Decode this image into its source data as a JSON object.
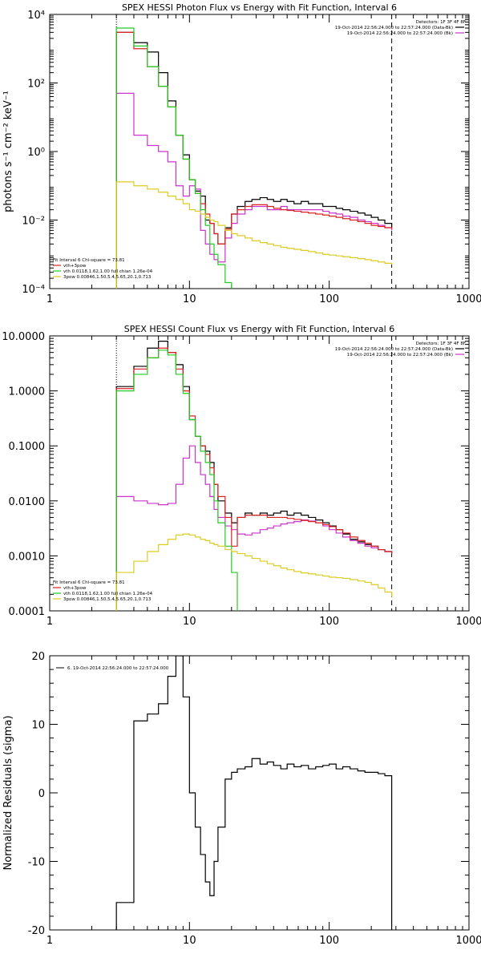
{
  "chart_data": [
    {
      "type": "line",
      "title": "SPEX HESSI Photon Flux vs Energy with Fit Function, Interval 6",
      "ylabel": "photons s⁻¹ cm⁻² keV⁻¹",
      "xlabel": "",
      "xscale": "log",
      "yscale": "log",
      "xlim": [
        1,
        1000
      ],
      "ylim": [
        0.0001,
        10000
      ],
      "x_ticks": [
        1,
        10,
        100,
        1000
      ],
      "x_ticklabels": [
        "1",
        "10",
        "100",
        "1000"
      ],
      "y_ticks": [
        0.0001,
        0.01,
        1,
        100,
        10000
      ],
      "y_ticklabels": [
        "10⁻⁴",
        "10⁻²",
        "10⁰",
        "10²",
        "10⁴"
      ],
      "legend_top": {
        "header": "Detectors: 1F 3F 4F 8F",
        "entries": [
          {
            "label": "19-Oct-2014 22:56:24.000 to 22:57:24.000 (Data-Bk)",
            "color": "#000000"
          },
          {
            "label": "19-Oct-2014 22:56:24.000 to 22:57:24.000 (Bk)",
            "color": "#cc33cc"
          }
        ]
      },
      "legend_bottom": {
        "header": "Fit Interval  6    Chi-square = 73.81",
        "entries": [
          {
            "label": "vth+3pow",
            "color": "#dd2222"
          },
          {
            "label": "vth 0.0118,1.62,1.00  full chian 1.26e-04",
            "color": "#22cc22"
          },
          {
            "label": "3pow 0.00846,1.50,5.4,5.65,20.1,0.713",
            "color": "#ddcc22"
          }
        ]
      },
      "vlines": [
        {
          "x": 3,
          "color": "#000000",
          "style": "dotted"
        },
        {
          "x": 280,
          "color": "#000000",
          "style": "dashed"
        }
      ],
      "series": [
        {
          "name": "Data-Bk",
          "color": "#000000",
          "step": true,
          "x": [
            3,
            4,
            5,
            6,
            7,
            8,
            9,
            10,
            11,
            12,
            13,
            14,
            15,
            16,
            18,
            20,
            22,
            25,
            28,
            32,
            36,
            40,
            45,
            50,
            56,
            63,
            71,
            80,
            90,
            100,
            112,
            125,
            141,
            160,
            180,
            200,
            224,
            250,
            280
          ],
          "y": [
            3000,
            1500,
            800,
            200,
            30,
            3,
            0.8,
            0.15,
            0.07,
            0.05,
            0.01,
            0.008,
            0.004,
            0.002,
            0.006,
            0.015,
            0.025,
            0.035,
            0.04,
            0.045,
            0.04,
            0.035,
            0.04,
            0.035,
            0.03,
            0.035,
            0.03,
            0.03,
            0.025,
            0.025,
            0.022,
            0.02,
            0.018,
            0.016,
            0.014,
            0.012,
            0.01,
            0.008,
            0.006
          ]
        },
        {
          "name": "Bk",
          "color": "#cc33cc",
          "step": true,
          "x": [
            3,
            4,
            5,
            6,
            7,
            8,
            9,
            10,
            11,
            12,
            13,
            14,
            15,
            16,
            18,
            20,
            22,
            25,
            28,
            32,
            36,
            40,
            45,
            50,
            56,
            63,
            71,
            80,
            90,
            100,
            112,
            125,
            141,
            160,
            180,
            200,
            224,
            250,
            280
          ],
          "y": [
            50,
            3,
            1.5,
            1,
            0.5,
            0.1,
            0.05,
            0.1,
            0.08,
            0.005,
            0.002,
            0.001,
            0.0007,
            0.0006,
            0.003,
            0.008,
            0.015,
            0.02,
            0.025,
            0.025,
            0.02,
            0.02,
            0.025,
            0.02,
            0.02,
            0.02,
            0.02,
            0.02,
            0.018,
            0.016,
            0.015,
            0.013,
            0.012,
            0.01,
            0.009,
            0.008,
            0.007,
            0.006,
            0.005
          ]
        },
        {
          "name": "vth+3pow",
          "color": "#dd2222",
          "step": true,
          "x": [
            3,
            4,
            5,
            6,
            7,
            8,
            9,
            10,
            11,
            12,
            13,
            14,
            15,
            16,
            18,
            20,
            22,
            25,
            28,
            32,
            36,
            40,
            45,
            50,
            56,
            63,
            71,
            80,
            90,
            100,
            112,
            125,
            141,
            160,
            180,
            200,
            224,
            250,
            280
          ],
          "y": [
            3000,
            1000,
            300,
            80,
            20,
            3,
            0.6,
            0.15,
            0.06,
            0.03,
            0.015,
            0.008,
            0.004,
            0.002,
            0.0055,
            0.015,
            0.02,
            0.025,
            0.028,
            0.028,
            0.025,
            0.022,
            0.02,
            0.019,
            0.018,
            0.017,
            0.016,
            0.015,
            0.014,
            0.013,
            0.012,
            0.011,
            0.01,
            0.009,
            0.008,
            0.007,
            0.0065,
            0.006,
            0.0055
          ]
        },
        {
          "name": "vth",
          "color": "#22cc22",
          "step": true,
          "x": [
            3,
            4,
            5,
            6,
            7,
            8,
            9,
            10,
            11,
            12,
            13,
            14,
            15,
            16,
            18,
            20
          ],
          "y": [
            4000,
            1200,
            300,
            80,
            20,
            3,
            0.6,
            0.15,
            0.06,
            0.02,
            0.007,
            0.002,
            0.001,
            0.0005,
            0.00015,
            5e-05
          ]
        },
        {
          "name": "3pow",
          "color": "#ddcc22",
          "step": true,
          "x": [
            3,
            4,
            5,
            6,
            7,
            8,
            9,
            10,
            11,
            12,
            13,
            14,
            15,
            16,
            18,
            20,
            22,
            25,
            28,
            32,
            36,
            40,
            45,
            50,
            56,
            63,
            71,
            80,
            90,
            100,
            112,
            125,
            141,
            160,
            180,
            200,
            224,
            250,
            280
          ],
          "y": [
            0.13,
            0.1,
            0.08,
            0.065,
            0.05,
            0.04,
            0.03,
            0.02,
            0.018,
            0.015,
            0.012,
            0.01,
            0.009,
            0.007,
            0.005,
            0.004,
            0.0035,
            0.003,
            0.0025,
            0.0022,
            0.002,
            0.0018,
            0.0016,
            0.0015,
            0.0014,
            0.0013,
            0.0012,
            0.0011,
            0.001,
            0.00095,
            0.0009,
            0.00085,
            0.0008,
            0.00075,
            0.0007,
            0.00065,
            0.0006,
            0.00055,
            0.0005
          ]
        }
      ]
    },
    {
      "type": "line",
      "title": "SPEX HESSI Count Flux vs Energy with Fit Function, Interval 6",
      "ylabel": "",
      "xlabel": "",
      "xscale": "log",
      "yscale": "log",
      "xlim": [
        1,
        1000
      ],
      "ylim": [
        0.0001,
        10
      ],
      "x_ticks": [
        1,
        10,
        100,
        1000
      ],
      "x_ticklabels": [
        "1",
        "10",
        "100",
        "1000"
      ],
      "y_ticks": [
        0.0001,
        0.001,
        0.01,
        0.1,
        1,
        10
      ],
      "y_ticklabels": [
        "0.0001",
        "0.0010",
        "0.0100",
        "0.1000",
        "1.0000",
        "10.0000"
      ],
      "legend_top": {
        "header": "Detectors: 1F 3F 4F 8F",
        "entries": [
          {
            "label": "19-Oct-2014 22:56:24.000 to 22:57:24.000 (Data-Bk)",
            "color": "#000000"
          },
          {
            "label": "19-Oct-2014 22:56:24.000 to 22:57:24.000 (Bk)",
            "color": "#cc33cc"
          }
        ]
      },
      "legend_bottom": {
        "header": "Fit Interval  6    Chi-square = 73.81",
        "entries": [
          {
            "label": "vth+3pow",
            "color": "#dd2222"
          },
          {
            "label": "vth 0.0118,1.62,1.00  full chian 1.26e-04",
            "color": "#22cc22"
          },
          {
            "label": "3pow 0.00846,1.50,5.4,5.65,20.1,0.713",
            "color": "#ddcc22"
          }
        ]
      },
      "vlines": [
        {
          "x": 3,
          "color": "#000000",
          "style": "dotted"
        },
        {
          "x": 280,
          "color": "#000000",
          "style": "dashed"
        }
      ],
      "series": [
        {
          "name": "Data-Bk",
          "color": "#000000",
          "step": true,
          "x": [
            3,
            4,
            5,
            6,
            7,
            8,
            9,
            10,
            11,
            12,
            13,
            14,
            15,
            16,
            18,
            20,
            22,
            25,
            28,
            32,
            36,
            40,
            45,
            50,
            56,
            63,
            71,
            80,
            90,
            100,
            112,
            125,
            141,
            160,
            180,
            200,
            224,
            250,
            280
          ],
          "y": [
            1.2,
            2.8,
            6.0,
            8.0,
            5.0,
            3.0,
            1.2,
            0.3,
            0.15,
            0.1,
            0.08,
            0.05,
            0.02,
            0.01,
            0.006,
            0.004,
            0.005,
            0.006,
            0.0055,
            0.006,
            0.0055,
            0.006,
            0.0065,
            0.0055,
            0.006,
            0.0055,
            0.005,
            0.0045,
            0.004,
            0.0035,
            0.003,
            0.0025,
            0.002,
            0.0018,
            0.0016,
            0.0015,
            0.0013,
            0.0012,
            0.0011
          ]
        },
        {
          "name": "Bk",
          "color": "#cc33cc",
          "step": true,
          "x": [
            3,
            4,
            5,
            6,
            7,
            8,
            9,
            10,
            11,
            12,
            13,
            14,
            15,
            16,
            18,
            20,
            22,
            25,
            28,
            32,
            36,
            40,
            45,
            50,
            56,
            63,
            71,
            80,
            90,
            100,
            112,
            125,
            141,
            160,
            180,
            200,
            224,
            250,
            280
          ],
          "y": [
            0.012,
            0.01,
            0.009,
            0.0085,
            0.009,
            0.02,
            0.06,
            0.1,
            0.05,
            0.03,
            0.02,
            0.012,
            0.007,
            0.005,
            0.0035,
            0.003,
            0.0025,
            0.0024,
            0.0026,
            0.003,
            0.0032,
            0.0035,
            0.0038,
            0.004,
            0.0042,
            0.0045,
            0.0043,
            0.004,
            0.0035,
            0.003,
            0.0026,
            0.0022,
            0.0019,
            0.0017,
            0.0015,
            0.0014,
            0.0013,
            0.0012,
            0.0011
          ]
        },
        {
          "name": "vth+3pow",
          "color": "#dd2222",
          "step": true,
          "x": [
            3,
            4,
            5,
            6,
            7,
            8,
            9,
            10,
            11,
            12,
            13,
            14,
            15,
            16,
            18,
            20,
            22,
            25,
            28,
            32,
            36,
            40,
            45,
            50,
            56,
            63,
            71,
            80,
            90,
            100,
            112,
            125,
            141,
            160,
            180,
            200,
            224,
            250,
            280
          ],
          "y": [
            1.1,
            2.5,
            4.0,
            6.0,
            5.0,
            2.5,
            1.0,
            0.35,
            0.15,
            0.1,
            0.07,
            0.04,
            0.02,
            0.012,
            0.005,
            0.0015,
            0.005,
            0.0055,
            0.0055,
            0.0055,
            0.005,
            0.005,
            0.005,
            0.0048,
            0.0046,
            0.0044,
            0.0042,
            0.004,
            0.0037,
            0.0034,
            0.003,
            0.0026,
            0.0022,
            0.0019,
            0.0017,
            0.0015,
            0.0013,
            0.0012,
            0.0011
          ]
        },
        {
          "name": "vth",
          "color": "#22cc22",
          "step": true,
          "x": [
            3,
            4,
            5,
            6,
            7,
            8,
            9,
            10,
            11,
            12,
            13,
            14,
            15,
            16,
            18,
            20,
            22
          ],
          "y": [
            1.0,
            2.0,
            4.0,
            5.5,
            4.5,
            2.0,
            0.9,
            0.3,
            0.15,
            0.08,
            0.05,
            0.03,
            0.01,
            0.004,
            0.0015,
            0.0005,
            8e-05
          ]
        },
        {
          "name": "3pow",
          "color": "#ddcc22",
          "step": true,
          "x": [
            3,
            4,
            5,
            6,
            7,
            8,
            9,
            10,
            11,
            12,
            13,
            14,
            15,
            16,
            18,
            20,
            22,
            25,
            28,
            32,
            36,
            40,
            45,
            50,
            56,
            63,
            71,
            80,
            90,
            100,
            112,
            125,
            141,
            160,
            180,
            200,
            224,
            250,
            280
          ],
          "y": [
            0.0005,
            0.0008,
            0.0012,
            0.0016,
            0.002,
            0.0024,
            0.0025,
            0.0024,
            0.0022,
            0.002,
            0.0019,
            0.0017,
            0.0016,
            0.0015,
            0.0013,
            0.0012,
            0.0011,
            0.001,
            0.0009,
            0.0008,
            0.00072,
            0.00066,
            0.0006,
            0.00056,
            0.00052,
            0.00049,
            0.00047,
            0.00045,
            0.00043,
            0.00041,
            0.0004,
            0.00039,
            0.00037,
            0.00035,
            0.00033,
            0.0003,
            0.00026,
            0.00022,
            0.00018
          ]
        }
      ]
    },
    {
      "type": "line",
      "title": "",
      "ylabel": "Normalized Residuals (sigma)",
      "xlabel": "",
      "xscale": "log",
      "yscale": "linear",
      "xlim": [
        1,
        1000
      ],
      "ylim": [
        -20,
        20
      ],
      "x_ticks": [
        1,
        10,
        100,
        1000
      ],
      "x_ticklabels": [
        "1",
        "10",
        "100",
        "1000"
      ],
      "y_ticks": [
        -20,
        -10,
        0,
        10,
        20
      ],
      "y_ticklabels": [
        "-20",
        "-10",
        "0",
        "10",
        "20"
      ],
      "legend_top": {
        "header": "",
        "entries": [
          {
            "label": "6. 19-Oct-2014 22:56:24.000 to 22:57:24.000",
            "color": "#000000"
          }
        ]
      },
      "legend_bottom": {
        "header": "",
        "entries": []
      },
      "vlines": [],
      "series": [
        {
          "name": "6. 19-Oct-2014 22:56:24.000 to 22:57:24.000",
          "color": "#000000",
          "step": true,
          "x": [
            3,
            4,
            5,
            6,
            7,
            8,
            9,
            10,
            11,
            12,
            13,
            14,
            15,
            16,
            18,
            20,
            22,
            25,
            28,
            32,
            36,
            40,
            45,
            50,
            56,
            63,
            71,
            80,
            90,
            100,
            112,
            125,
            141,
            160,
            180,
            200,
            224,
            250,
            280
          ],
          "y": [
            -16,
            10.5,
            11.5,
            13,
            17,
            20,
            14,
            0,
            -5,
            -9,
            -13,
            -15,
            -10,
            -5,
            2,
            3,
            3.5,
            3.8,
            5,
            4.2,
            4.5,
            4.0,
            3.5,
            4.2,
            3.8,
            4.0,
            3.5,
            3.8,
            4.0,
            4.2,
            3.5,
            3.8,
            3.5,
            3.2,
            3.0,
            3.0,
            2.8,
            2.5,
            -20
          ]
        }
      ]
    }
  ]
}
